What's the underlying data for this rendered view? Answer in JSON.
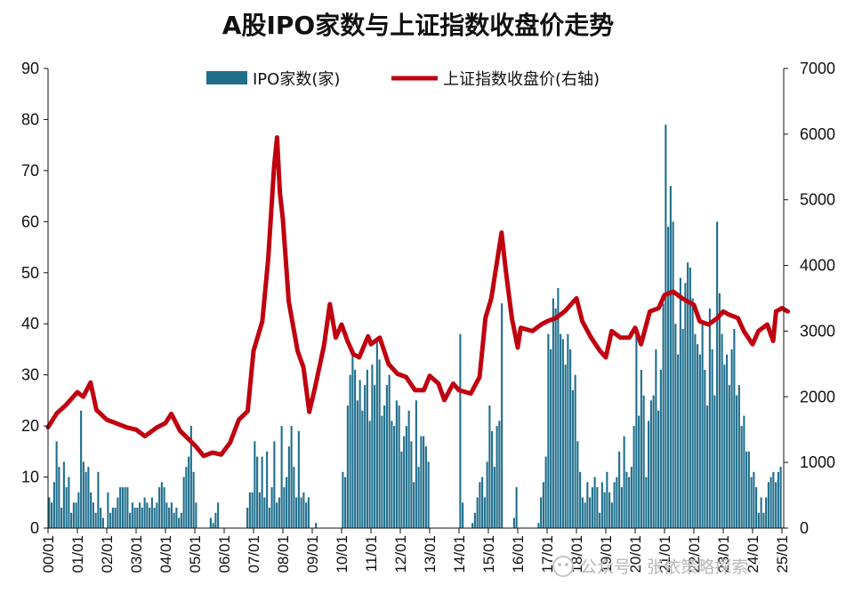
{
  "chart_data": {
    "type": "bar+line",
    "title": "A股IPO家数与上证指数收盘价走势",
    "x_labels": [
      "00/01",
      "01/01",
      "02/01",
      "03/01",
      "04/01",
      "05/01",
      "06/01",
      "07/01",
      "08/01",
      "09/01",
      "10/01",
      "11/01",
      "12/01",
      "13/01",
      "14/01",
      "15/01",
      "16/01",
      "17/01",
      "18/01",
      "19/01",
      "20/01",
      "21/01",
      "22/01",
      "23/01",
      "24/01",
      "25/01"
    ],
    "y_left": {
      "min": 0,
      "max": 90,
      "step": 10,
      "ticks": [
        "0",
        "10",
        "20",
        "30",
        "40",
        "50",
        "60",
        "70",
        "80",
        "90"
      ]
    },
    "y_right": {
      "min": 0,
      "max": 7000,
      "step": 1000,
      "ticks": [
        "0",
        "1000",
        "2000",
        "3000",
        "4000",
        "5000",
        "6000",
        "7000"
      ]
    },
    "legend_position": "top-center",
    "series": [
      {
        "name": "IPO家数(家)",
        "type": "bar",
        "axis": "left",
        "color": "#1f6e8c",
        "annual_values": [
          [
            6,
            5,
            9,
            17,
            12,
            4,
            13,
            8,
            10,
            3,
            5,
            5
          ],
          [
            7,
            23,
            13,
            11,
            12,
            7,
            5,
            3,
            11,
            4,
            2,
            0
          ],
          [
            7,
            3,
            4,
            4,
            6,
            8,
            8,
            8,
            8,
            3,
            5,
            4
          ],
          [
            4,
            5,
            4,
            6,
            5,
            4,
            6,
            4,
            5,
            8,
            9,
            8
          ],
          [
            5,
            4,
            5,
            3,
            4,
            2,
            3,
            10,
            12,
            14,
            20,
            11
          ],
          [
            5,
            0,
            0,
            0,
            0,
            0,
            2,
            1,
            3,
            5,
            0,
            0
          ],
          [
            0,
            0,
            0,
            0,
            0,
            0,
            0,
            0,
            0,
            4,
            7,
            7
          ],
          [
            17,
            14,
            7,
            14,
            6,
            15,
            4,
            8,
            17,
            5,
            6,
            20
          ],
          [
            8,
            10,
            16,
            20,
            12,
            6,
            19,
            6,
            7,
            5,
            6,
            0
          ],
          [
            0,
            1,
            0,
            0,
            0,
            0,
            0,
            0,
            0,
            0,
            0,
            0
          ],
          [
            11,
            10,
            24,
            30,
            35,
            31,
            25,
            29,
            23,
            28,
            31,
            21
          ],
          [
            32,
            28,
            37,
            33,
            22,
            24,
            28,
            30,
            21,
            20,
            25,
            24
          ],
          [
            15,
            18,
            20,
            23,
            17,
            9,
            25,
            12,
            18,
            18,
            16,
            13
          ],
          [
            0,
            0,
            0,
            0,
            0,
            0,
            0,
            0,
            0,
            0,
            0,
            0
          ],
          [
            38,
            5,
            0,
            0,
            0,
            1,
            3,
            6,
            9,
            10,
            6,
            13
          ],
          [
            24,
            19,
            12,
            20,
            21,
            44,
            0,
            0,
            0,
            0,
            2,
            8
          ],
          [
            0,
            0,
            0,
            0,
            0,
            0,
            0,
            0,
            1,
            6,
            9,
            14
          ],
          [
            38,
            35,
            45,
            43,
            47,
            38,
            37,
            32,
            38,
            35,
            27,
            30
          ],
          [
            17,
            11,
            6,
            5,
            9,
            6,
            8,
            10,
            8,
            3,
            9,
            7
          ],
          [
            11,
            7,
            5,
            9,
            10,
            15,
            8,
            18,
            11,
            10,
            12,
            20
          ],
          [
            38,
            22,
            31,
            26,
            10,
            21,
            25,
            26,
            35,
            23,
            31,
            44
          ],
          [
            79,
            59,
            67,
            60,
            40,
            34,
            49,
            39,
            48,
            52,
            51,
            45
          ],
          [
            38,
            36,
            34,
            40,
            31,
            24,
            43,
            35,
            26,
            60,
            46,
            38
          ],
          [
            32,
            34,
            28,
            35,
            39,
            26,
            28,
            20,
            22,
            15,
            15,
            10
          ],
          [
            11,
            8,
            3,
            6,
            3,
            6,
            9,
            10,
            11,
            9,
            11,
            12
          ]
        ]
      },
      {
        "name": "上证指数收盘价(右轴)",
        "type": "line",
        "axis": "right",
        "color": "#c0000f",
        "points": [
          [
            0.0,
            1535
          ],
          [
            0.3,
            1750
          ],
          [
            0.6,
            1870
          ],
          [
            1.0,
            2070
          ],
          [
            1.2,
            2000
          ],
          [
            1.45,
            2218
          ],
          [
            1.65,
            1800
          ],
          [
            2.0,
            1650
          ],
          [
            2.3,
            1600
          ],
          [
            2.7,
            1530
          ],
          [
            3.0,
            1500
          ],
          [
            3.3,
            1400
          ],
          [
            3.7,
            1530
          ],
          [
            4.0,
            1600
          ],
          [
            4.2,
            1740
          ],
          [
            4.5,
            1480
          ],
          [
            4.8,
            1350
          ],
          [
            5.0,
            1260
          ],
          [
            5.3,
            1100
          ],
          [
            5.6,
            1150
          ],
          [
            5.9,
            1120
          ],
          [
            6.2,
            1300
          ],
          [
            6.5,
            1650
          ],
          [
            6.8,
            1780
          ],
          [
            7.0,
            2700
          ],
          [
            7.3,
            3150
          ],
          [
            7.5,
            4100
          ],
          [
            7.7,
            5500
          ],
          [
            7.8,
            5950
          ],
          [
            7.9,
            5100
          ],
          [
            8.0,
            4700
          ],
          [
            8.2,
            3450
          ],
          [
            8.5,
            2700
          ],
          [
            8.7,
            2450
          ],
          [
            8.9,
            1770
          ],
          [
            9.1,
            2150
          ],
          [
            9.4,
            2780
          ],
          [
            9.6,
            3410
          ],
          [
            9.8,
            2900
          ],
          [
            10.0,
            3100
          ],
          [
            10.2,
            2850
          ],
          [
            10.4,
            2650
          ],
          [
            10.6,
            2600
          ],
          [
            10.9,
            2920
          ],
          [
            11.0,
            2800
          ],
          [
            11.3,
            2900
          ],
          [
            11.6,
            2500
          ],
          [
            11.9,
            2350
          ],
          [
            12.2,
            2300
          ],
          [
            12.5,
            2100
          ],
          [
            12.8,
            2100
          ],
          [
            13.0,
            2320
          ],
          [
            13.3,
            2200
          ],
          [
            13.5,
            1950
          ],
          [
            13.8,
            2200
          ],
          [
            14.0,
            2100
          ],
          [
            14.4,
            2050
          ],
          [
            14.7,
            2300
          ],
          [
            14.9,
            3200
          ],
          [
            15.1,
            3500
          ],
          [
            15.45,
            4500
          ],
          [
            15.6,
            3900
          ],
          [
            15.8,
            3200
          ],
          [
            16.0,
            2750
          ],
          [
            16.1,
            3050
          ],
          [
            16.5,
            3000
          ],
          [
            16.8,
            3100
          ],
          [
            17.0,
            3150
          ],
          [
            17.3,
            3200
          ],
          [
            17.6,
            3300
          ],
          [
            18.0,
            3500
          ],
          [
            18.2,
            3150
          ],
          [
            18.5,
            2900
          ],
          [
            18.8,
            2700
          ],
          [
            19.0,
            2600
          ],
          [
            19.2,
            3000
          ],
          [
            19.5,
            2900
          ],
          [
            19.8,
            2900
          ],
          [
            20.0,
            3050
          ],
          [
            20.2,
            2800
          ],
          [
            20.5,
            3300
          ],
          [
            20.8,
            3350
          ],
          [
            21.0,
            3550
          ],
          [
            21.3,
            3600
          ],
          [
            21.6,
            3500
          ],
          [
            22.0,
            3400
          ],
          [
            22.2,
            3150
          ],
          [
            22.5,
            3100
          ],
          [
            22.8,
            3200
          ],
          [
            23.0,
            3300
          ],
          [
            23.2,
            3250
          ],
          [
            23.5,
            3200
          ],
          [
            23.7,
            3000
          ],
          [
            24.0,
            2800
          ],
          [
            24.2,
            3000
          ],
          [
            24.5,
            3100
          ],
          [
            24.7,
            2850
          ],
          [
            24.8,
            3300
          ],
          [
            25.0,
            3350
          ],
          [
            25.2,
            3300
          ]
        ]
      }
    ]
  },
  "watermark": "公众号 · 张依策略探索"
}
